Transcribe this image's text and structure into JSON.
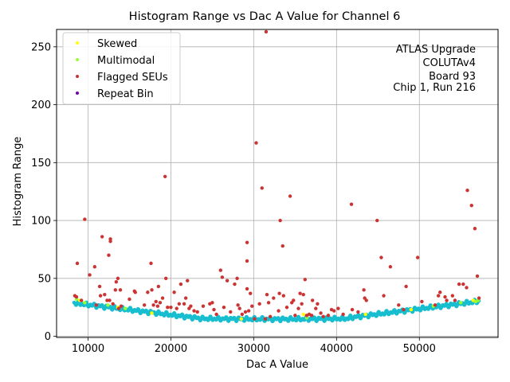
{
  "chart_data": {
    "type": "scatter",
    "title": "Histogram Range vs Dac A Value for Channel 6",
    "xlabel": "Dac A Value",
    "ylabel": "Histogram Range",
    "xlim": [
      6200,
      59500
    ],
    "ylim": [
      -1,
      265
    ],
    "xticks": [
      10000,
      20000,
      30000,
      40000,
      50000
    ],
    "xtick_labels": [
      "10000",
      "20000",
      "30000",
      "40000",
      "50000"
    ],
    "yticks": [
      0,
      50,
      100,
      150,
      200,
      250
    ],
    "ytick_labels": [
      "0",
      "50",
      "100",
      "150",
      "200",
      "250"
    ],
    "grid": true,
    "legend_position": "top-left",
    "annotation": [
      "ATLAS Upgrade",
      "COLUTAv4",
      "Board 93",
      "Chip 1, Run 216"
    ],
    "baseline_color": "#17becf",
    "series": [
      {
        "name": "Skewed",
        "color": "#ffff00",
        "points": [
          [
            9000,
            31
          ],
          [
            13600,
            25
          ],
          [
            17700,
            20
          ],
          [
            28500,
            15
          ],
          [
            36000,
            19
          ],
          [
            43500,
            19
          ],
          [
            49000,
            23
          ],
          [
            56500,
            31
          ]
        ]
      },
      {
        "name": "Multimodal",
        "color": "#99ff33",
        "points": [
          [
            8600,
            32
          ],
          [
            9600,
            29
          ],
          [
            12400,
            27
          ],
          [
            14500,
            24
          ],
          [
            36400,
            16
          ],
          [
            51700,
            26
          ],
          [
            55000,
            29
          ],
          [
            56800,
            30
          ],
          [
            57100,
            31
          ]
        ]
      },
      {
        "name": "Flagged SEUs",
        "color": "#cc3333",
        "points": [
          [
            8400,
            35
          ],
          [
            8600,
            34
          ],
          [
            8700,
            63
          ],
          [
            9200,
            31
          ],
          [
            9600,
            101
          ],
          [
            10200,
            53
          ],
          [
            10800,
            60
          ],
          [
            11000,
            27
          ],
          [
            11400,
            43
          ],
          [
            11500,
            35
          ],
          [
            11700,
            86
          ],
          [
            12000,
            36
          ],
          [
            12300,
            31
          ],
          [
            12500,
            70
          ],
          [
            12600,
            31
          ],
          [
            12700,
            82
          ],
          [
            12700,
            84
          ],
          [
            13000,
            28
          ],
          [
            13300,
            40
          ],
          [
            13400,
            47
          ],
          [
            13600,
            50
          ],
          [
            13700,
            24
          ],
          [
            13900,
            40
          ],
          [
            14000,
            26
          ],
          [
            15000,
            32
          ],
          [
            15600,
            39
          ],
          [
            15700,
            38
          ],
          [
            16800,
            27
          ],
          [
            17200,
            38
          ],
          [
            17600,
            63
          ],
          [
            17700,
            40
          ],
          [
            17900,
            27
          ],
          [
            18200,
            30
          ],
          [
            18400,
            26
          ],
          [
            18500,
            43
          ],
          [
            18700,
            29
          ],
          [
            19000,
            33
          ],
          [
            19300,
            138
          ],
          [
            19400,
            50
          ],
          [
            19600,
            25
          ],
          [
            20000,
            25
          ],
          [
            20400,
            38
          ],
          [
            20700,
            24
          ],
          [
            21000,
            28
          ],
          [
            21200,
            45
          ],
          [
            21600,
            28
          ],
          [
            21800,
            33
          ],
          [
            22000,
            48
          ],
          [
            22200,
            24
          ],
          [
            22400,
            26
          ],
          [
            22800,
            22
          ],
          [
            23200,
            21
          ],
          [
            23900,
            26
          ],
          [
            24700,
            28
          ],
          [
            25000,
            29
          ],
          [
            25200,
            23
          ],
          [
            25500,
            19
          ],
          [
            26000,
            57
          ],
          [
            26200,
            51
          ],
          [
            26400,
            25
          ],
          [
            26800,
            48
          ],
          [
            27200,
            21
          ],
          [
            27700,
            45
          ],
          [
            28000,
            50
          ],
          [
            28100,
            27
          ],
          [
            28300,
            24
          ],
          [
            28600,
            19
          ],
          [
            29000,
            21
          ],
          [
            29200,
            41
          ],
          [
            29200,
            65
          ],
          [
            29200,
            81
          ],
          [
            29400,
            22
          ],
          [
            29600,
            37
          ],
          [
            29800,
            26
          ],
          [
            30100,
            15
          ],
          [
            30300,
            167
          ],
          [
            30700,
            28
          ],
          [
            31000,
            128
          ],
          [
            31400,
            15
          ],
          [
            31500,
            263
          ],
          [
            31600,
            36
          ],
          [
            31800,
            29
          ],
          [
            32000,
            17
          ],
          [
            32400,
            33
          ],
          [
            33000,
            22
          ],
          [
            33100,
            37
          ],
          [
            33200,
            100
          ],
          [
            33500,
            78
          ],
          [
            33600,
            35
          ],
          [
            34000,
            25
          ],
          [
            34400,
            121
          ],
          [
            34600,
            29
          ],
          [
            34800,
            31
          ],
          [
            35000,
            18
          ],
          [
            35400,
            24
          ],
          [
            35600,
            37
          ],
          [
            35800,
            28
          ],
          [
            36000,
            36
          ],
          [
            36200,
            49
          ],
          [
            36400,
            18
          ],
          [
            36700,
            19
          ],
          [
            37000,
            18
          ],
          [
            37100,
            31
          ],
          [
            37500,
            24
          ],
          [
            37700,
            28
          ],
          [
            38100,
            20
          ],
          [
            38400,
            17
          ],
          [
            39000,
            18
          ],
          [
            39400,
            23
          ],
          [
            39700,
            22
          ],
          [
            40200,
            24
          ],
          [
            40800,
            19
          ],
          [
            41800,
            114
          ],
          [
            41900,
            23
          ],
          [
            42600,
            21
          ],
          [
            43300,
            40
          ],
          [
            43400,
            33
          ],
          [
            43600,
            31
          ],
          [
            44900,
            100
          ],
          [
            45400,
            68
          ],
          [
            45700,
            35
          ],
          [
            46500,
            60
          ],
          [
            47500,
            27
          ],
          [
            48100,
            23
          ],
          [
            48400,
            43
          ],
          [
            49800,
            68
          ],
          [
            50300,
            30
          ],
          [
            51900,
            27
          ],
          [
            52300,
            35
          ],
          [
            52500,
            38
          ],
          [
            53100,
            34
          ],
          [
            53300,
            31
          ],
          [
            54000,
            35
          ],
          [
            54300,
            31
          ],
          [
            54800,
            45
          ],
          [
            55300,
            45
          ],
          [
            55700,
            42
          ],
          [
            55800,
            126
          ],
          [
            56300,
            113
          ],
          [
            56700,
            93
          ],
          [
            57000,
            52
          ],
          [
            57200,
            33
          ]
        ]
      },
      {
        "name": "Repeat Bin",
        "color": "#7700aa",
        "points": []
      }
    ]
  }
}
